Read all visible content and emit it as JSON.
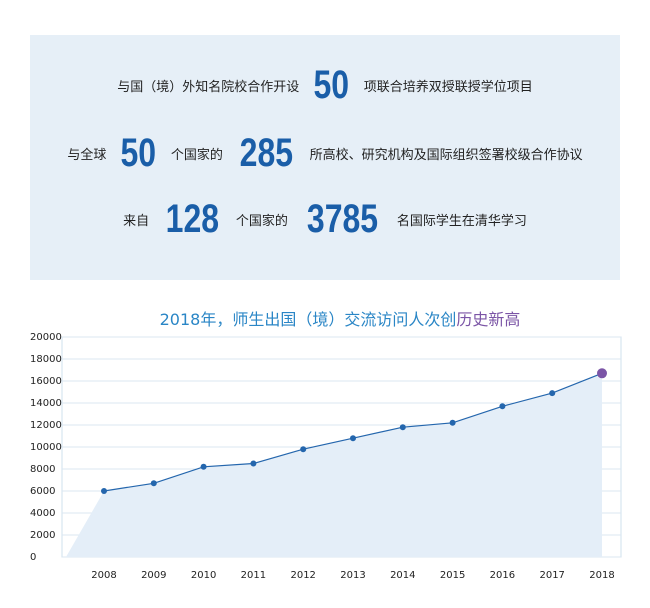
{
  "stats": [
    [
      "与国（境）外知名院校合作开设",
      "50",
      "项联合培养双授联授学位项目"
    ],
    [
      "与全球",
      "50",
      "个国家的",
      "285",
      "所高校、研究机构及国际组织签署校级合作协议"
    ],
    [
      "来自",
      "128",
      "个国家的",
      "3785",
      "名国际学生在清华学习"
    ]
  ],
  "chart_data": {
    "type": "line",
    "title": "2018年，师生出国（境）交流访问人次创",
    "title_highlight": "历史新高",
    "categories": [
      "2008",
      "2009",
      "2010",
      "2011",
      "2012",
      "2013",
      "2014",
      "2015",
      "2016",
      "2017",
      "2018"
    ],
    "values": [
      6000,
      6700,
      8200,
      8500,
      9800,
      10800,
      11800,
      12200,
      13700,
      14900,
      16700
    ],
    "color": "#2466ad",
    "highlight_color": "#7b55a6",
    "area_color": "#e4eef8",
    "ylim": [
      0,
      20000
    ],
    "yticks": [
      0,
      2000,
      4000,
      6000,
      8000,
      10000,
      12000,
      14000,
      16000,
      18000,
      20000
    ],
    "grid": true
  }
}
